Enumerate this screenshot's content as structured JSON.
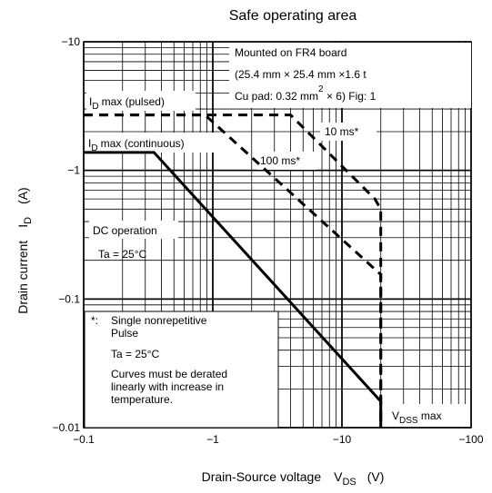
{
  "chart_data": {
    "type": "line",
    "title": "Safe operating area",
    "xlabel": "Drain-Source voltage",
    "xlabel_symbol": "V",
    "xlabel_sub": "DS",
    "xlabel_unit": "(V)",
    "ylabel": "Drain current",
    "ylabel_symbol": "I",
    "ylabel_sub": "D",
    "ylabel_unit": "(A)",
    "x_scale": "log",
    "y_scale": "log",
    "xlim": [
      -0.1,
      -100
    ],
    "ylim": [
      -0.01,
      -10
    ],
    "x_ticks": [
      {
        "value": -0.1,
        "label": "−0.1"
      },
      {
        "value": -1,
        "label": "−1"
      },
      {
        "value": -10,
        "label": "−10"
      },
      {
        "value": -100,
        "label": "−100"
      }
    ],
    "y_ticks": [
      {
        "value": -0.01,
        "label": "−0.01"
      },
      {
        "value": -0.1,
        "label": "−0.1"
      },
      {
        "value": -1,
        "label": "−1"
      },
      {
        "value": -10,
        "label": "−10"
      }
    ],
    "grid": true,
    "series": [
      {
        "name": "DC operation",
        "style": "solid",
        "x": [
          -0.1,
          -0.35,
          -20,
          -20
        ],
        "y": [
          -1.38,
          -1.38,
          -0.016,
          -0.01
        ]
      },
      {
        "name": "100 ms*",
        "style": "dashed",
        "x": [
          -0.1,
          -0.87,
          -20,
          -20
        ],
        "y": [
          -2.7,
          -2.7,
          -0.155,
          -0.01
        ]
      },
      {
        "name": "10 ms*",
        "style": "dashed",
        "x": [
          -0.1,
          -4.0,
          -18,
          -20,
          -20
        ],
        "y": [
          -2.7,
          -2.7,
          -0.6,
          -0.5,
          -0.01
        ]
      }
    ],
    "annotations": {
      "id_pulsed": "I",
      "id_pulsed_rest": "max (pulsed)",
      "id_cont": "I",
      "id_cont_rest": "max (continuous)",
      "d_sub": "D",
      "ms10": "10 ms*",
      "ms100": "100 ms*",
      "dc": "DC operation",
      "ta": "Ta = 25°C",
      "vdss": "V",
      "vdss_sub": "DSS",
      "vdss_rest": " max"
    },
    "board_note": {
      "line1": "Mounted on FR4 board",
      "line2": "(25.4 mm × 25.4 mm ×1.6 t",
      "line3a": "Cu pad: 0.32 mm",
      "line3sup": "2",
      "line3b": " × 6) Fig: 1"
    },
    "footnote": {
      "marker": "*:",
      "line1": "Single nonrepetitive",
      "line2": "Pulse",
      "line3": "Ta = 25°C",
      "line4": "Curves must be derated",
      "line5": "linearly with increase in",
      "line6": "temperature."
    }
  }
}
